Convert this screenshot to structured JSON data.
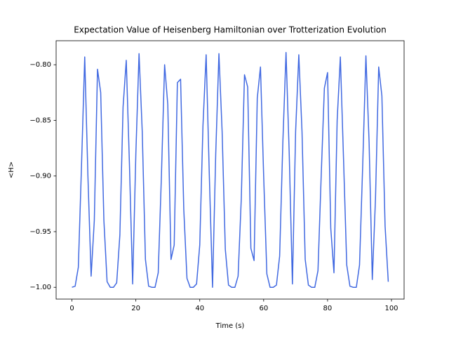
{
  "chart_data": {
    "type": "line",
    "title": "Expectation Value of Heisenberg Hamiltonian over Trotterization Evolution",
    "xlabel": "Time (s)",
    "ylabel": "<H>",
    "x": [
      0,
      1,
      2,
      3,
      4,
      5,
      6,
      7,
      8,
      9,
      10,
      11,
      12,
      13,
      14,
      15,
      16,
      17,
      18,
      19,
      20,
      21,
      22,
      23,
      24,
      25,
      26,
      27,
      28,
      29,
      30,
      31,
      32,
      33,
      34,
      35,
      36,
      37,
      38,
      39,
      40,
      41,
      42,
      43,
      44,
      45,
      46,
      47,
      48,
      49,
      50,
      51,
      52,
      53,
      54,
      55,
      56,
      57,
      58,
      59,
      60,
      61,
      62,
      63,
      64,
      65,
      66,
      67,
      68,
      69,
      70,
      71,
      72,
      73,
      74,
      75,
      76,
      77,
      78,
      79,
      80,
      81,
      82,
      83,
      84,
      85,
      86,
      87,
      88,
      89,
      90,
      91,
      92,
      93,
      94,
      95,
      96,
      97,
      98,
      99
    ],
    "series": [
      {
        "name": "<H>",
        "color": "#4169e1",
        "values": [
          -1.0,
          -0.999,
          -0.982,
          -0.89,
          -0.793,
          -0.9,
          -0.99,
          -0.94,
          -0.804,
          -0.825,
          -0.94,
          -0.995,
          -1.0,
          -1.0,
          -0.996,
          -0.953,
          -0.838,
          -0.796,
          -0.89,
          -0.997,
          -0.88,
          -0.79,
          -0.86,
          -0.975,
          -0.999,
          -1.0,
          -1.0,
          -0.987,
          -0.9,
          -0.8,
          -0.836,
          -0.975,
          -0.962,
          -0.816,
          -0.813,
          -0.93,
          -0.992,
          -1.0,
          -1.0,
          -0.997,
          -0.962,
          -0.855,
          -0.791,
          -0.9,
          -1.0,
          -0.88,
          -0.79,
          -0.86,
          -0.966,
          -0.998,
          -1.0,
          -1.0,
          -0.99,
          -0.92,
          -0.809,
          -0.82,
          -0.965,
          -0.976,
          -0.83,
          -0.802,
          -0.9,
          -0.988,
          -1.0,
          -1.0,
          -0.998,
          -0.972,
          -0.87,
          -0.789,
          -0.88,
          -0.997,
          -0.86,
          -0.791,
          -0.86,
          -0.975,
          -0.998,
          -1.0,
          -1.0,
          -0.985,
          -0.9,
          -0.821,
          -0.807,
          -0.947,
          -0.987,
          -0.85,
          -0.793,
          -0.885,
          -0.98,
          -0.999,
          -1.0,
          -1.0,
          -0.98,
          -0.89,
          -0.792,
          -0.87,
          -0.993,
          -0.92,
          -0.802,
          -0.828,
          -0.945,
          -0.995
        ]
      }
    ],
    "xlim": [
      -4.95,
      103.95
    ],
    "ylim": [
      -1.0106,
      -0.7784
    ],
    "xticks": [
      0,
      20,
      40,
      60,
      80,
      100
    ],
    "yticks": [
      {
        "value": -1.0,
        "label": "−1.00"
      },
      {
        "value": -0.95,
        "label": "−0.95"
      },
      {
        "value": -0.9,
        "label": "−0.90"
      },
      {
        "value": -0.85,
        "label": "−0.85"
      },
      {
        "value": -0.8,
        "label": "−0.80"
      }
    ],
    "grid": false
  }
}
